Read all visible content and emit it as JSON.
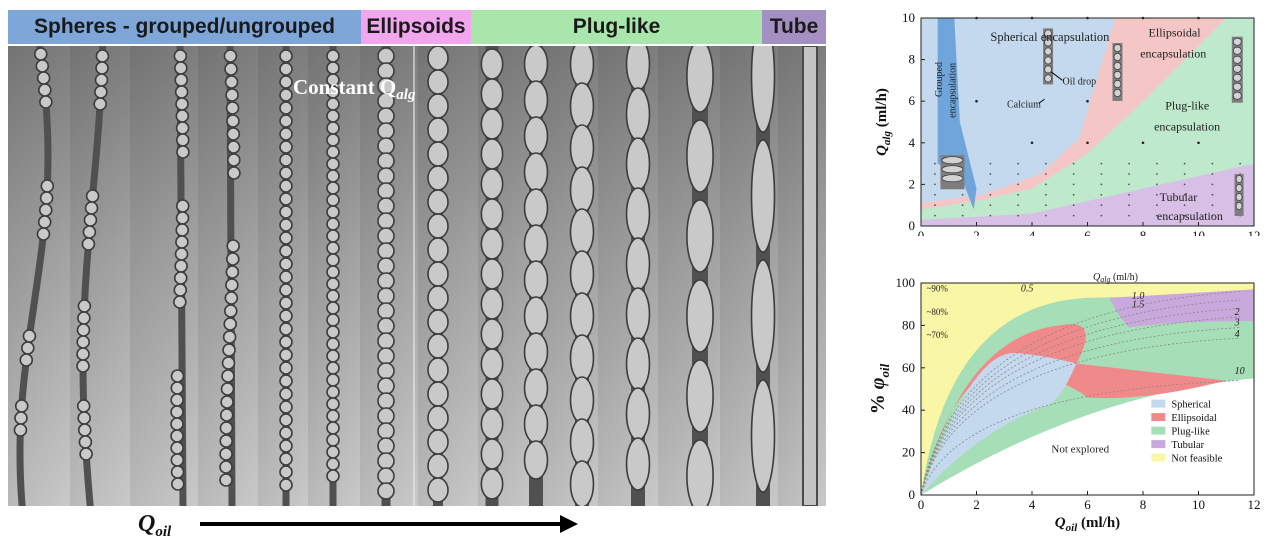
{
  "left_panel": {
    "regimes": [
      {
        "label": "Spheres - grouped/ungrouped",
        "color": "#7ea6d8"
      },
      {
        "label": "Ellipsoids",
        "color": "#f2a6ee"
      },
      {
        "label": "Plug-like",
        "color": "#a8e6ac"
      },
      {
        "label": "Tube",
        "color": "#a48fc2"
      }
    ],
    "caption": "Constant Q",
    "caption_sub": "alg",
    "axis_label": "Q",
    "axis_label_sub": "oil"
  },
  "top_chart": {
    "ylabel": "Q",
    "ylabel_sub": "alg",
    "ylabel_unit": " (ml/h)",
    "x_ticks": [
      "0",
      "2",
      "4",
      "6",
      "8",
      "10",
      "12"
    ],
    "y_ticks": [
      "0",
      "2",
      "4",
      "6",
      "8",
      "10"
    ],
    "regions": [
      {
        "label": "Spherical encapsulation",
        "color": "#c5d9ee"
      },
      {
        "label": "Grouped encapsulation",
        "color": "#6fa5da"
      },
      {
        "label": "Ellipsoidal encapsulation",
        "color": "#f4c6c6"
      },
      {
        "label": "Plug-like encapsulation",
        "color": "#bfe9cc"
      },
      {
        "label": "Tubular encapsulation",
        "color": "#d7bfe6"
      }
    ],
    "annotations": {
      "calcium": "Calcium",
      "oil_drop": "Oil drop"
    }
  },
  "bottom_chart": {
    "ylabel_prefix": "% ",
    "ylabel_sym": "φ",
    "ylabel_sub": "oil",
    "xlabel": "Q",
    "xlabel_sub": "oil",
    "xlabel_unit": " (ml/h)",
    "x_ticks": [
      "0",
      "2",
      "4",
      "6",
      "8",
      "10",
      "12"
    ],
    "y_ticks": [
      "0",
      "20",
      "40",
      "60",
      "80",
      "100"
    ],
    "curve_title": "Q",
    "curve_title_sub": "alg",
    "curve_title_unit": " (ml/h)",
    "pct_labels": [
      "~90%",
      "~80%",
      "~70%"
    ],
    "curve_labels": [
      "0.5",
      "1.0",
      "1.5",
      "2",
      "3",
      "4",
      "10"
    ],
    "not_explored": "Not explored",
    "legend": [
      {
        "label": "Spherical",
        "color": "#c5d9ee"
      },
      {
        "label": "Ellipsoidal",
        "color": "#f08a8a"
      },
      {
        "label": "Plug-like",
        "color": "#a6dfb7"
      },
      {
        "label": "Tubular",
        "color": "#c9a9dc"
      },
      {
        "label": "Not feasible",
        "color": "#f9f6a5"
      }
    ]
  }
}
